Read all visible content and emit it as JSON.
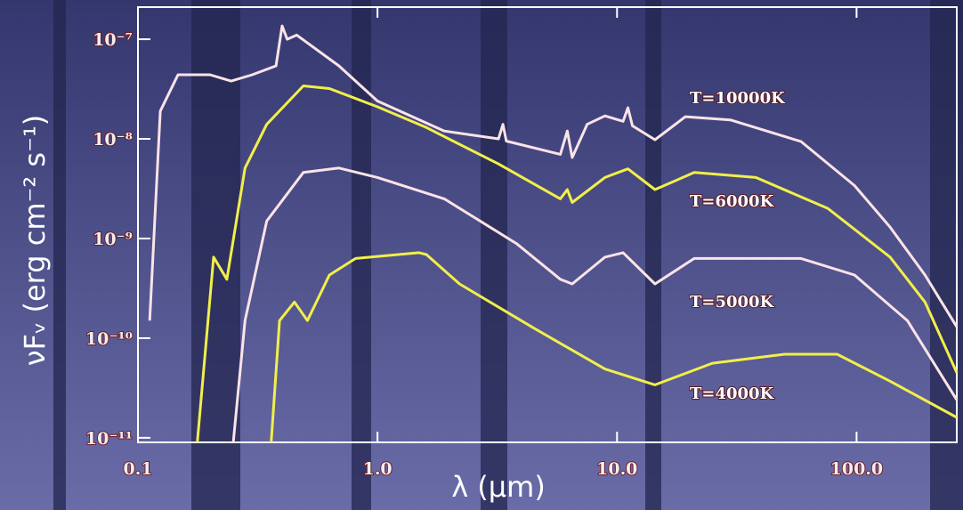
{
  "chart_data": {
    "type": "line",
    "xlabel": "λ (μm)",
    "ylabel": "νFᵥ (erg cm⁻² s⁻¹)",
    "xscale": "log",
    "yscale": "log",
    "xlim": [
      0.1,
      262
    ],
    "ylim": [
      9e-12,
      2.1e-07
    ],
    "xticks": [
      0.1,
      {
        "value": 1,
        "label": "1.0"
      },
      {
        "value": 10,
        "label": "10.0"
      },
      {
        "value": 100,
        "label": "100.0"
      }
    ],
    "yticks": [
      {
        "value": 1e-11,
        "label": "10⁻¹¹"
      },
      {
        "value": 1e-10,
        "label": "10⁻¹⁰"
      },
      {
        "value": 1e-09,
        "label": "10⁻⁹"
      },
      {
        "value": 1e-08,
        "label": "10⁻⁸"
      },
      {
        "value": 1e-07,
        "label": "10⁻⁷"
      }
    ],
    "series": [
      {
        "name": "T=10000K",
        "color": "#fbe3e8",
        "x": [
          0.112,
          0.124,
          0.147,
          0.2,
          0.245,
          0.3,
          0.377,
          0.4,
          0.42,
          0.46,
          0.69,
          1.0,
          1.9,
          3.2,
          3.34,
          3.45,
          5.8,
          6.2,
          6.5,
          7.5,
          8.9,
          10.6,
          11.1,
          11.6,
          14.4,
          19.3,
          29.7,
          58.6,
          98,
          138,
          193,
          262
        ],
        "values": [
          1.5e-10,
          1.9e-08,
          4.4e-08,
          4.4e-08,
          3.8e-08,
          4.4e-08,
          5.4e-08,
          1.36e-07,
          1e-07,
          1.1e-07,
          5.4e-08,
          2.4e-08,
          1.2e-08,
          1e-08,
          1.4e-08,
          9.5e-09,
          7e-09,
          1.2e-08,
          6.5e-09,
          1.4e-08,
          1.7e-08,
          1.5e-08,
          2.05e-08,
          1.35e-08,
          9.8e-09,
          1.67e-08,
          1.55e-08,
          9.4e-09,
          3.4e-09,
          1.3e-09,
          4.3e-10,
          1.3e-10
        ]
      },
      {
        "name": "T=6000K",
        "color": "#f2ef4a",
        "x": [
          0.177,
          0.207,
          0.235,
          0.28,
          0.345,
          0.49,
          0.63,
          1.0,
          1.6,
          3.2,
          5.8,
          6.2,
          6.5,
          8.9,
          11.1,
          14.4,
          21,
          38,
          76,
          138,
          193,
          262
        ],
        "values": [
          9e-12,
          6.5e-10,
          3.9e-10,
          5.1e-09,
          1.4e-08,
          3.4e-08,
          3.2e-08,
          2.1e-08,
          1.3e-08,
          5.6e-09,
          2.5e-09,
          3.1e-09,
          2.3e-09,
          4.1e-09,
          5e-09,
          3.1e-09,
          4.6e-09,
          4.1e-09,
          2e-09,
          6.5e-10,
          2.3e-10,
          4.5e-11
        ]
      },
      {
        "name": "T=5000K",
        "color": "#fbe3e8",
        "x": [
          0.25,
          0.28,
          0.345,
          0.49,
          0.69,
          1.0,
          1.9,
          3.8,
          5.8,
          6.5,
          8.9,
          10.6,
          14.4,
          21,
          58.6,
          98,
          163,
          262
        ],
        "values": [
          9e-12,
          1.5e-10,
          1.5e-09,
          4.6e-09,
          5.1e-09,
          4.1e-09,
          2.5e-09,
          8.9e-10,
          3.9e-10,
          3.5e-10,
          6.5e-10,
          7.2e-10,
          3.5e-10,
          6.3e-10,
          6.3e-10,
          4.3e-10,
          1.5e-10,
          2.4e-11
        ]
      },
      {
        "name": "T=4000K",
        "color": "#f2ef4a",
        "x": [
          0.36,
          0.39,
          0.45,
          0.51,
          0.63,
          0.81,
          1.49,
          1.6,
          2.2,
          4.5,
          8.9,
          14.4,
          25,
          50,
          83,
          138,
          262
        ],
        "values": [
          9e-12,
          1.5e-10,
          2.3e-10,
          1.5e-10,
          4.3e-10,
          6.3e-10,
          7.2e-10,
          6.9e-10,
          3.5e-10,
          1.26e-10,
          4.9e-11,
          3.4e-11,
          5.6e-11,
          6.9e-11,
          6.9e-11,
          3.7e-11,
          1.6e-11
        ]
      }
    ]
  }
}
